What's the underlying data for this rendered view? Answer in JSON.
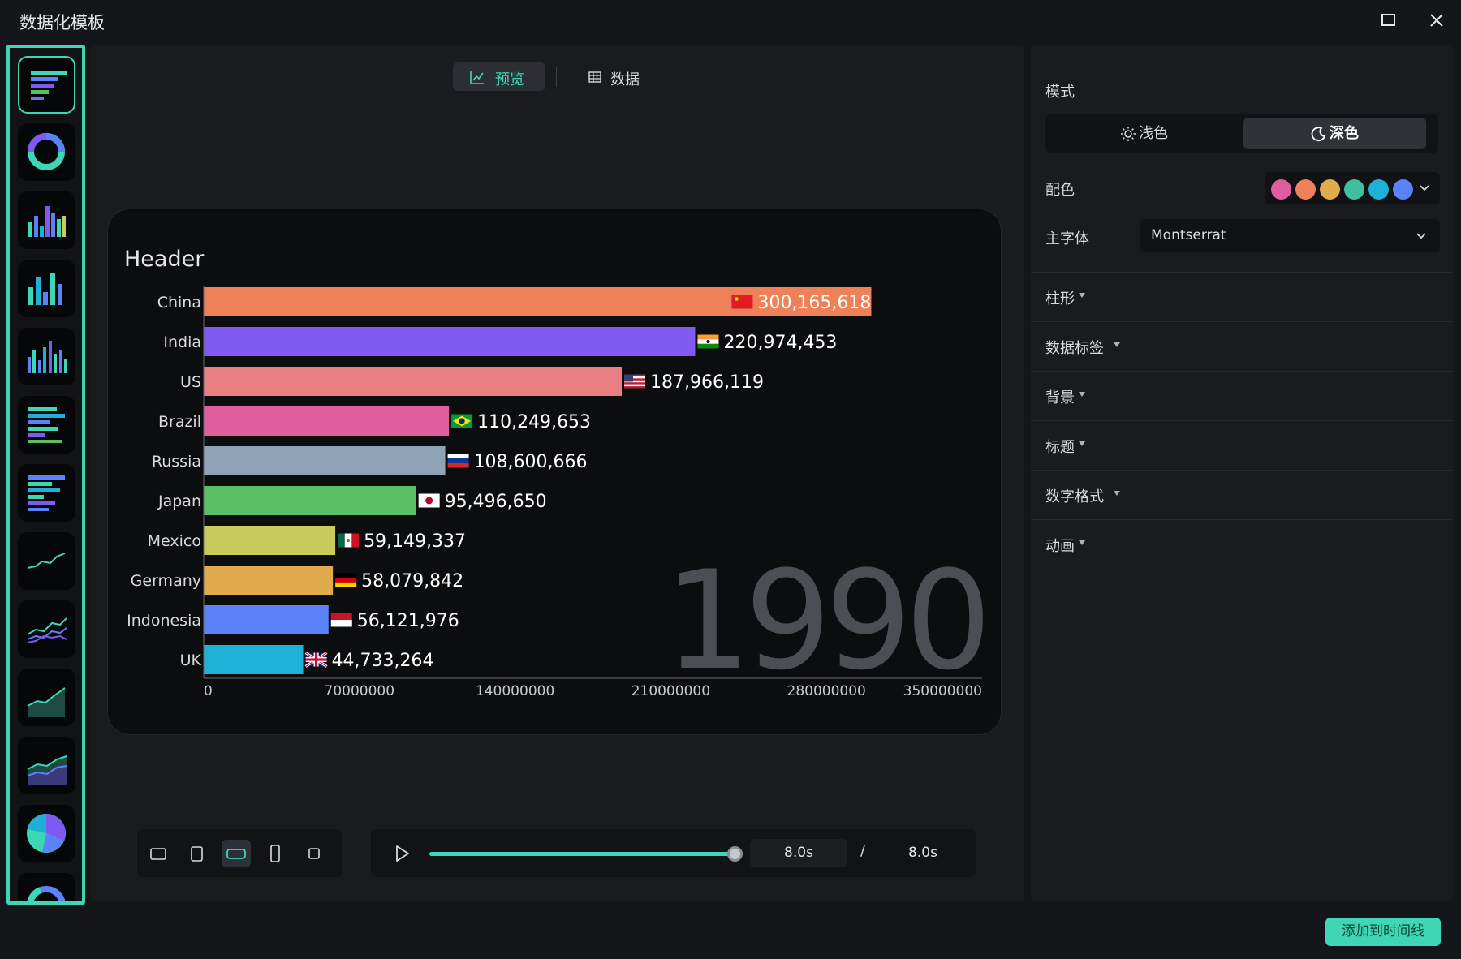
{
  "window": {
    "title": "数据化模板",
    "maximize_icon": "maximize-icon",
    "close_icon": "close-icon"
  },
  "sidebar": {
    "templates": [
      {
        "id": "bar-race-horizontal",
        "icon": "horizontal-bar-race-icon",
        "selected": true
      },
      {
        "id": "donut",
        "icon": "donut-chart-icon"
      },
      {
        "id": "column-1",
        "icon": "column-chart-icon"
      },
      {
        "id": "column-2",
        "icon": "column-chart-icon"
      },
      {
        "id": "column-3",
        "icon": "column-chart-icon"
      },
      {
        "id": "bar-1",
        "icon": "bar-chart-icon"
      },
      {
        "id": "bar-2",
        "icon": "bar-chart-icon"
      },
      {
        "id": "line-1",
        "icon": "line-chart-icon"
      },
      {
        "id": "line-2",
        "icon": "multi-line-chart-icon"
      },
      {
        "id": "area-1",
        "icon": "area-chart-icon"
      },
      {
        "id": "area-2",
        "icon": "stacked-area-chart-icon"
      },
      {
        "id": "pie",
        "icon": "pie-chart-icon"
      },
      {
        "id": "gauge",
        "icon": "half-donut-chart-icon"
      }
    ]
  },
  "tabs": {
    "preview_label": "预览",
    "preview_icon": "line-chart-icon",
    "data_label": "数据",
    "data_icon": "table-icon",
    "active": "preview"
  },
  "chart_data": {
    "type": "bar",
    "orientation": "horizontal",
    "title": "Header",
    "year_label": "1990",
    "categories": [
      "China",
      "India",
      "US",
      "Brazil",
      "Russia",
      "Japan",
      "Mexico",
      "Germany",
      "Indonesia",
      "UK"
    ],
    "values": [
      300165618,
      220974453,
      187966119,
      110249653,
      108600666,
      95496650,
      59149337,
      58079842,
      56121976,
      44733264
    ],
    "value_labels": [
      "300,165,618",
      "220,974,453",
      "187,966,119",
      "110,249,653",
      "108,600,666",
      "95,496,650",
      "59,149,337",
      "58,079,842",
      "56,121,976",
      "44,733,264"
    ],
    "colors": [
      "#ee8158",
      "#7f5af0",
      "#e97f83",
      "#e05d9e",
      "#8fa3b8",
      "#58bf63",
      "#c9cc5b",
      "#e0ab4b",
      "#5b82f8",
      "#1eb0d6"
    ],
    "flag_icons": [
      "china-flag-icon",
      "india-flag-icon",
      "us-flag-icon",
      "brazil-flag-icon",
      "russia-flag-icon",
      "japan-flag-icon",
      "mexico-flag-icon",
      "germany-flag-icon",
      "indonesia-flag-icon",
      "uk-flag-icon"
    ],
    "xlim": [
      0,
      350000000
    ],
    "xticks": [
      0,
      70000000,
      140000000,
      210000000,
      280000000,
      350000000
    ],
    "xtick_labels": [
      "0",
      "70000000",
      "140000000",
      "210000000",
      "280000000",
      "350000000"
    ],
    "grid": false,
    "theme": "dark"
  },
  "aspect_ratios": {
    "options": [
      "landscape-4-3",
      "portrait-3-4",
      "landscape-16-9",
      "portrait-9-16",
      "square-1-1"
    ],
    "selected": "landscape-16-9"
  },
  "player": {
    "play_icon": "play-icon",
    "progress": 1.0,
    "current_time": "8.0s",
    "separator": "/",
    "total_time": "8.0s"
  },
  "settings": {
    "mode_label": "模式",
    "mode_light": "浅色",
    "mode_dark": "深色",
    "mode_selected": "dark",
    "palette_label": "配色",
    "palette_colors": [
      "#e05d9e",
      "#ee8158",
      "#e0ab4b",
      "#3fbf9c",
      "#1eb0d6",
      "#5b82f8"
    ],
    "font_label": "主字体",
    "font_value": "Montserrat",
    "sections": [
      "柱形",
      "数据标签",
      "背景",
      "标题",
      "数字格式",
      "动画"
    ]
  },
  "footer": {
    "add_to_timeline": "添加到时间线",
    "accent": "#3ed6b4"
  }
}
